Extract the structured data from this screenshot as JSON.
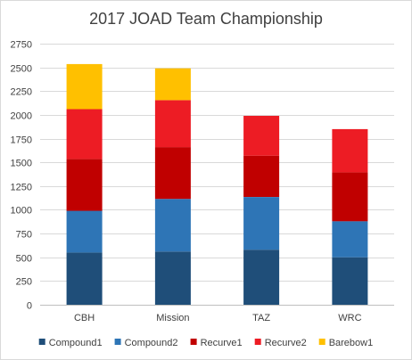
{
  "chart_data": {
    "type": "bar",
    "stacked": true,
    "title": "2017 JOAD Team Championship",
    "xlabel": "",
    "ylabel": "",
    "categories": [
      "CBH",
      "Mission",
      "TAZ",
      "WRC"
    ],
    "ylim": [
      0,
      2750
    ],
    "yticks": [
      0,
      250,
      500,
      750,
      1000,
      1250,
      1500,
      1750,
      2000,
      2250,
      2500,
      2750
    ],
    "grid": true,
    "legend_position": "bottom",
    "series": [
      {
        "name": "Compound1",
        "color": "#1f4e79",
        "values": [
          550,
          560,
          580,
          500
        ]
      },
      {
        "name": "Compound2",
        "color": "#2e75b6",
        "values": [
          440,
          555,
          555,
          380
        ]
      },
      {
        "name": "Recurve1",
        "color": "#c00000",
        "values": [
          545,
          545,
          435,
          515
        ]
      },
      {
        "name": "Recurve2",
        "color": "#ed1c24",
        "values": [
          525,
          495,
          420,
          455
        ]
      },
      {
        "name": "Barebow1",
        "color": "#ffc000",
        "values": [
          475,
          335,
          0,
          0
        ]
      }
    ]
  }
}
